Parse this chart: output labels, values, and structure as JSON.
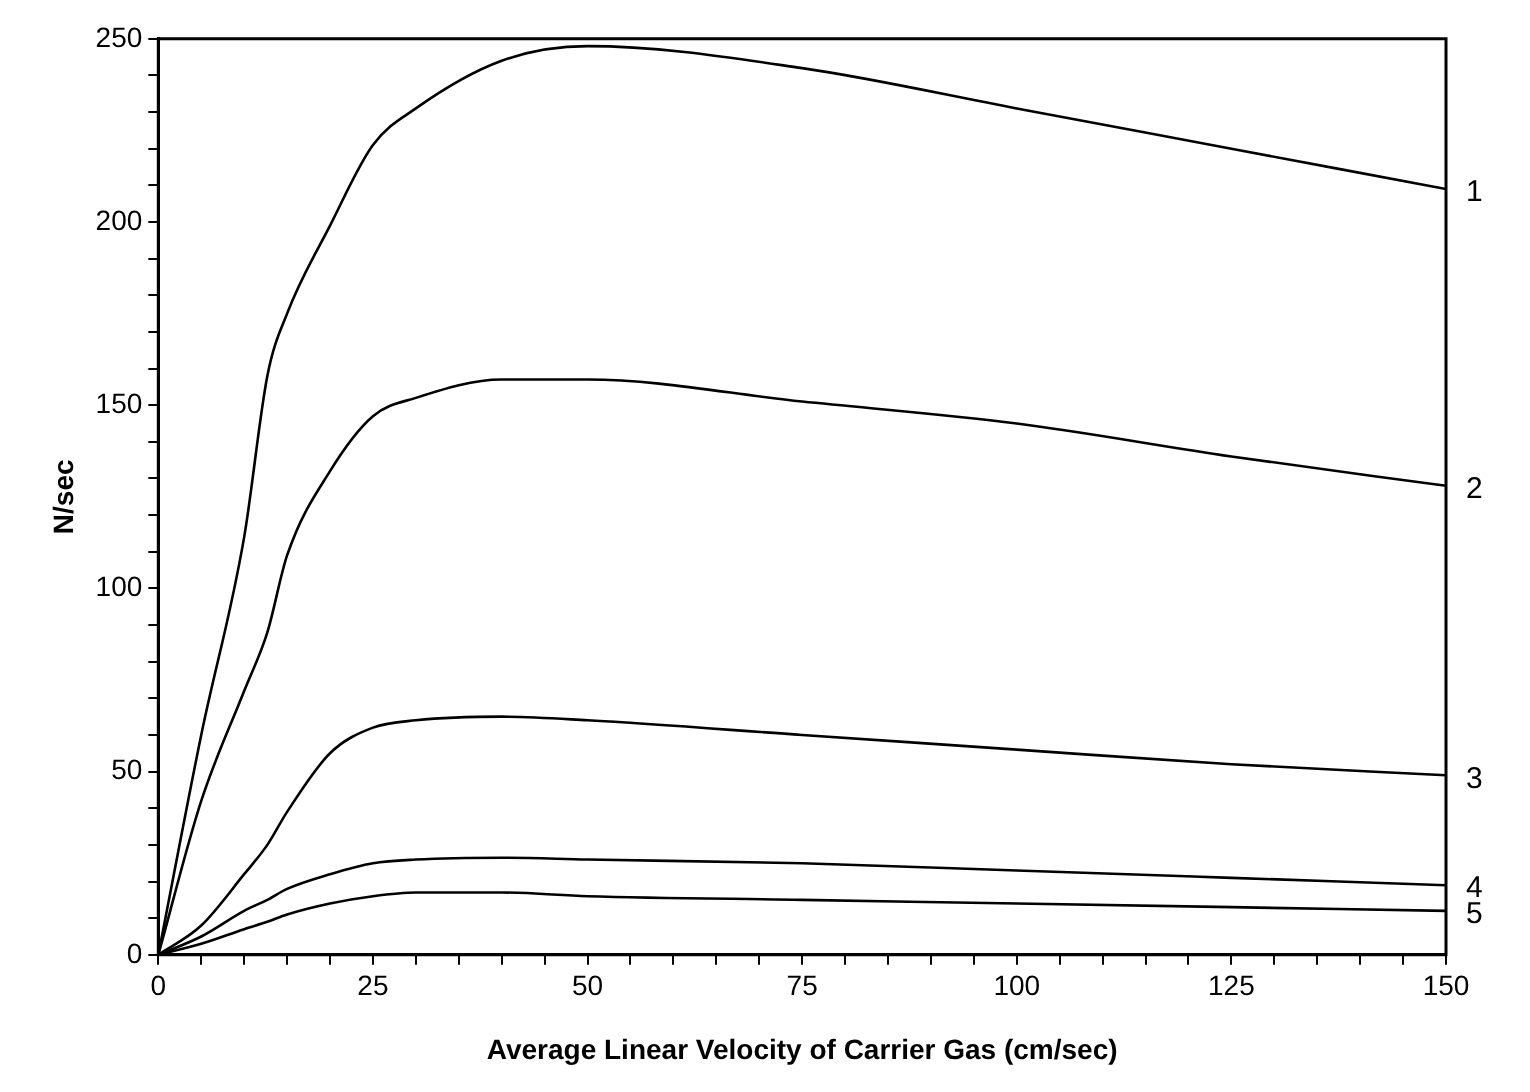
{
  "chart_data": {
    "type": "line",
    "xlabel": "Average Linear Velocity of Carrier Gas (cm/sec)",
    "ylabel": "N/sec",
    "xlim": [
      0,
      150
    ],
    "ylim": [
      0,
      250
    ],
    "xticks": [
      0,
      {
        "value": 5,
        "label": null
      },
      {
        "value": 10,
        "label": null
      },
      {
        "value": 15,
        "label": null
      },
      {
        "value": 20,
        "label": null
      },
      25,
      {
        "value": 30,
        "label": null
      },
      {
        "value": 35,
        "label": null
      },
      {
        "value": 40,
        "label": null
      },
      {
        "value": 45,
        "label": null
      },
      50,
      {
        "value": 55,
        "label": null
      },
      {
        "value": 60,
        "label": null
      },
      {
        "value": 65,
        "label": null
      },
      {
        "value": 70,
        "label": null
      },
      75,
      {
        "value": 80,
        "label": null
      },
      {
        "value": 85,
        "label": null
      },
      {
        "value": 90,
        "label": null
      },
      {
        "value": 95,
        "label": null
      },
      100,
      {
        "value": 105,
        "label": null
      },
      {
        "value": 110,
        "label": null
      },
      {
        "value": 115,
        "label": null
      },
      {
        "value": 120,
        "label": null
      },
      125,
      {
        "value": 130,
        "label": null
      },
      {
        "value": 135,
        "label": null
      },
      {
        "value": 140,
        "label": null
      },
      {
        "value": 145,
        "label": null
      },
      150
    ],
    "yticks": [
      0,
      {
        "value": 10,
        "label": null
      },
      {
        "value": 20,
        "label": null
      },
      {
        "value": 30,
        "label": null
      },
      {
        "value": 40,
        "label": null
      },
      50,
      {
        "value": 60,
        "label": null
      },
      {
        "value": 70,
        "label": null
      },
      {
        "value": 80,
        "label": null
      },
      {
        "value": 90,
        "label": null
      },
      100,
      {
        "value": 110,
        "label": null
      },
      {
        "value": 120,
        "label": null
      },
      {
        "value": 130,
        "label": null
      },
      {
        "value": 140,
        "label": null
      },
      150,
      {
        "value": 160,
        "label": null
      },
      {
        "value": 170,
        "label": null
      },
      {
        "value": 180,
        "label": null
      },
      {
        "value": 190,
        "label": null
      },
      200,
      {
        "value": 210,
        "label": null
      },
      {
        "value": 220,
        "label": null
      },
      {
        "value": 230,
        "label": null
      },
      {
        "value": 240,
        "label": null
      },
      250
    ],
    "x": [
      0,
      5,
      10,
      12.7,
      15,
      20,
      25,
      30,
      40,
      50,
      75,
      100,
      125,
      150
    ],
    "grid": false,
    "legend": false,
    "marker": "none",
    "line_style": "solid",
    "series": [
      {
        "name": "1",
        "color": "#000000",
        "values": [
          0,
          60,
          114,
          158,
          175,
          199,
          221,
          231,
          244,
          248,
          242,
          231,
          220,
          209
        ]
      },
      {
        "name": "2",
        "color": "#000000",
        "values": [
          0,
          42,
          72,
          88,
          109,
          132,
          147,
          152,
          157,
          157,
          151,
          145,
          136,
          128
        ]
      },
      {
        "name": "3",
        "color": "#000000",
        "values": [
          0,
          8,
          22,
          30,
          39,
          55,
          62,
          64,
          65,
          64,
          60,
          56,
          52,
          49
        ]
      },
      {
        "name": "4",
        "color": "#000000",
        "values": [
          0,
          5,
          12,
          15,
          18,
          22,
          25,
          26,
          26.5,
          26,
          25,
          23,
          21,
          19
        ]
      },
      {
        "name": "5",
        "color": "#000000",
        "values": [
          0,
          3,
          7,
          9,
          11,
          14,
          16,
          17,
          17,
          16,
          15,
          14,
          13,
          12
        ]
      }
    ]
  }
}
